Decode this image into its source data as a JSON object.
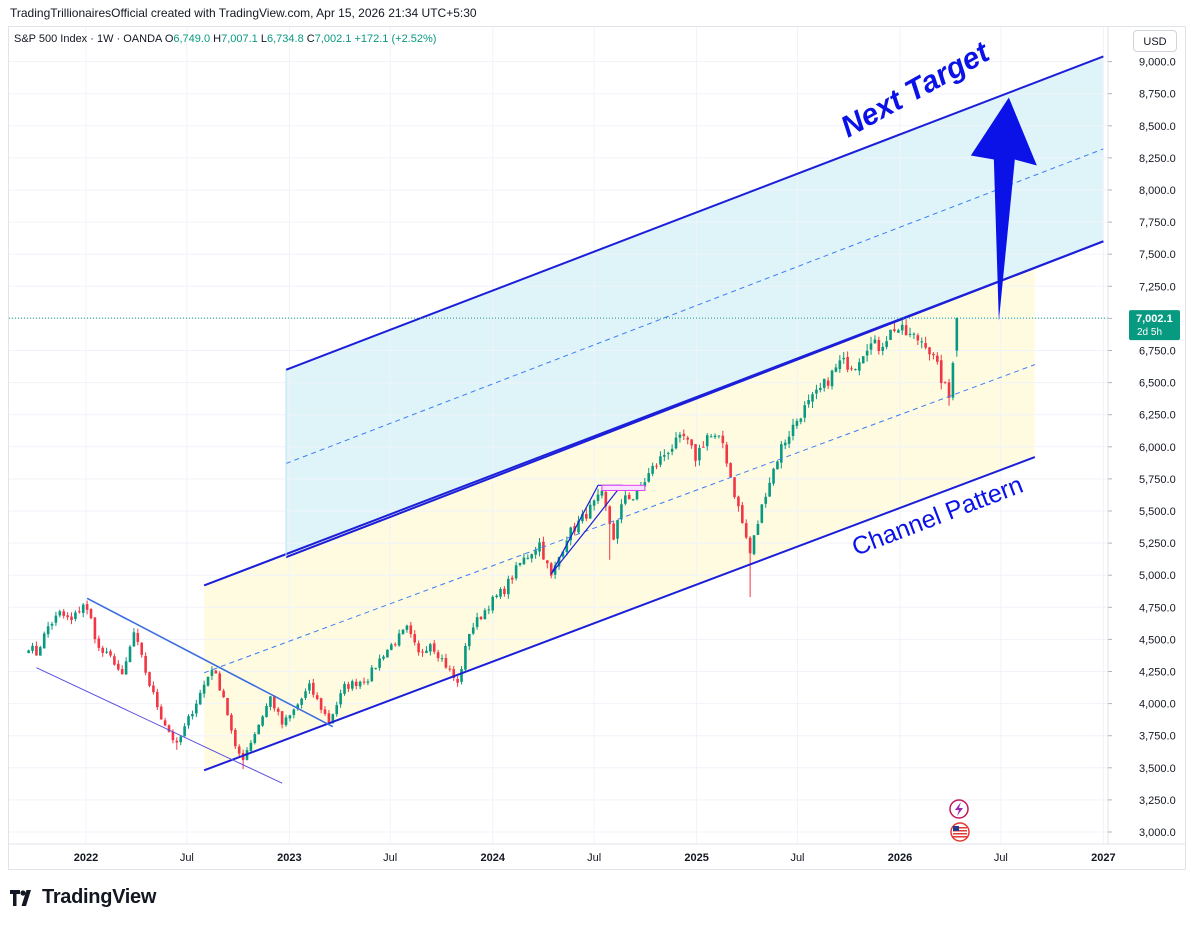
{
  "header": {
    "credit": "TradingTrillionairesOfficial created with TradingView.com, Apr 15, 2026 21:34 UTC+5:30",
    "symbol": "S&P 500 Index · 1W · OANDA",
    "o_label": "O",
    "o_value": "6,749.0",
    "h_label": "H",
    "h_value": "7,007.1",
    "l_label": "L",
    "l_value": "6,734.8",
    "c_label": "C",
    "c_value": "7,002.1",
    "change": "+172.1 (+2.52%)",
    "currency": "USD"
  },
  "footer": {
    "brand": "TradingView",
    "logo_icon": "tradingview-logo-icon"
  },
  "colors": {
    "up": "#089981",
    "down": "#f23645",
    "channel": "#1b1fd9",
    "arrow": "#0a12e8",
    "upper_fill": "#dff4f9",
    "lower_fill": "#fffbe0",
    "price_badge": "#089981",
    "pattern_box": "#e040fb"
  },
  "chart_data": {
    "type": "candlestick",
    "interval": "1W",
    "ylim": [
      2900,
      9150
    ],
    "y_ticks": [
      "3,000.0",
      "3,250.0",
      "3,500.0",
      "3,750.0",
      "4,000.0",
      "4,250.0",
      "4,500.0",
      "4,750.0",
      "5,000.0",
      "5,250.0",
      "5,500.0",
      "5,750.0",
      "6,000.0",
      "6,250.0",
      "6,500.0",
      "6,750.0",
      "7,000.0",
      "7,250.0",
      "7,500.0",
      "7,750.0",
      "8,000.0",
      "8,250.0",
      "8,500.0",
      "8,750.0",
      "9,000.0"
    ],
    "x_ticks": [
      {
        "label": "2022",
        "date": "2022-01-01",
        "bold": true
      },
      {
        "label": "Jul",
        "date": "2022-07-01",
        "bold": false
      },
      {
        "label": "2023",
        "date": "2023-01-01",
        "bold": true
      },
      {
        "label": "Jul",
        "date": "2023-07-01",
        "bold": false
      },
      {
        "label": "2024",
        "date": "2024-01-01",
        "bold": true
      },
      {
        "label": "Jul",
        "date": "2024-07-01",
        "bold": false
      },
      {
        "label": "2025",
        "date": "2025-01-01",
        "bold": true
      },
      {
        "label": "Jul",
        "date": "2025-07-01",
        "bold": false
      },
      {
        "label": "2026",
        "date": "2026-01-01",
        "bold": true
      },
      {
        "label": "Jul",
        "date": "2026-07-01",
        "bold": false
      },
      {
        "label": "2027",
        "date": "2027-01-01",
        "bold": true
      }
    ],
    "last_price": {
      "value": 7002.1,
      "label": "7,002.1",
      "countdown": "2d 5h"
    },
    "close_path": [
      {
        "date": "2021-09-20",
        "value": 4450
      },
      {
        "date": "2021-10-04",
        "value": 4390
      },
      {
        "date": "2021-10-25",
        "value": 4600
      },
      {
        "date": "2021-11-15",
        "value": 4700
      },
      {
        "date": "2021-12-06",
        "value": 4640
      },
      {
        "date": "2021-12-27",
        "value": 4780
      },
      {
        "date": "2022-01-10",
        "value": 4650
      },
      {
        "date": "2022-01-24",
        "value": 4420
      },
      {
        "date": "2022-02-21",
        "value": 4330
      },
      {
        "date": "2022-03-07",
        "value": 4200
      },
      {
        "date": "2022-03-28",
        "value": 4550
      },
      {
        "date": "2022-04-25",
        "value": 4150
      },
      {
        "date": "2022-05-16",
        "value": 3900
      },
      {
        "date": "2022-06-13",
        "value": 3670
      },
      {
        "date": "2022-07-04",
        "value": 3880
      },
      {
        "date": "2022-08-15",
        "value": 4280
      },
      {
        "date": "2022-09-05",
        "value": 4060
      },
      {
        "date": "2022-09-26",
        "value": 3640
      },
      {
        "date": "2022-10-10",
        "value": 3580
      },
      {
        "date": "2022-10-31",
        "value": 3770
      },
      {
        "date": "2022-11-28",
        "value": 4050
      },
      {
        "date": "2022-12-19",
        "value": 3840
      },
      {
        "date": "2023-01-02",
        "value": 3900
      },
      {
        "date": "2023-02-06",
        "value": 4130
      },
      {
        "date": "2023-03-13",
        "value": 3860
      },
      {
        "date": "2023-04-10",
        "value": 4130
      },
      {
        "date": "2023-05-22",
        "value": 4200
      },
      {
        "date": "2023-06-19",
        "value": 4390
      },
      {
        "date": "2023-07-31",
        "value": 4580
      },
      {
        "date": "2023-08-21",
        "value": 4380
      },
      {
        "date": "2023-09-11",
        "value": 4480
      },
      {
        "date": "2023-10-09",
        "value": 4300
      },
      {
        "date": "2023-10-30",
        "value": 4150
      },
      {
        "date": "2023-11-20",
        "value": 4560
      },
      {
        "date": "2023-12-25",
        "value": 4770
      },
      {
        "date": "2024-01-22",
        "value": 4890
      },
      {
        "date": "2024-02-19",
        "value": 5090
      },
      {
        "date": "2024-03-25",
        "value": 5250
      },
      {
        "date": "2024-04-15",
        "value": 4980
      },
      {
        "date": "2024-05-13",
        "value": 5300
      },
      {
        "date": "2024-06-17",
        "value": 5480
      },
      {
        "date": "2024-07-15",
        "value": 5620
      },
      {
        "date": "2024-08-05",
        "value": 5300
      },
      {
        "date": "2024-08-26",
        "value": 5630
      },
      {
        "date": "2024-09-09",
        "value": 5600
      },
      {
        "date": "2024-10-14",
        "value": 5830
      },
      {
        "date": "2024-11-11",
        "value": 5980
      },
      {
        "date": "2024-12-09",
        "value": 6070
      },
      {
        "date": "2024-12-30",
        "value": 5920
      },
      {
        "date": "2025-01-20",
        "value": 6090
      },
      {
        "date": "2025-02-17",
        "value": 6030
      },
      {
        "date": "2025-03-10",
        "value": 5640
      },
      {
        "date": "2025-04-07",
        "value": 5170
      },
      {
        "date": "2025-05-05",
        "value": 5650
      },
      {
        "date": "2025-06-02",
        "value": 6000
      },
      {
        "date": "2025-07-07",
        "value": 6260
      },
      {
        "date": "2025-08-11",
        "value": 6440
      },
      {
        "date": "2025-09-15",
        "value": 6650
      },
      {
        "date": "2025-10-13",
        "value": 6650
      },
      {
        "date": "2025-11-03",
        "value": 6800
      },
      {
        "date": "2025-11-24",
        "value": 6780
      },
      {
        "date": "2025-12-22",
        "value": 6930
      },
      {
        "date": "2026-01-19",
        "value": 6860
      },
      {
        "date": "2026-02-16",
        "value": 6820
      },
      {
        "date": "2026-03-09",
        "value": 6610
      },
      {
        "date": "2026-03-30",
        "value": 6380
      },
      {
        "date": "2026-04-13",
        "value": 7002
      }
    ],
    "candle_extremes": [
      {
        "date": "2022-06-13",
        "low": 3640
      },
      {
        "date": "2022-10-10",
        "low": 3490
      },
      {
        "date": "2024-07-29",
        "low": 5120
      },
      {
        "date": "2025-04-07",
        "low": 4830
      },
      {
        "date": "2026-03-30",
        "low": 6320
      },
      {
        "date": "2026-04-13",
        "high": 7007
      }
    ],
    "annotations": [
      {
        "type": "text",
        "text": "Next Target"
      },
      {
        "type": "text",
        "text": "Channel Pattern"
      },
      {
        "type": "arrow",
        "name": "target-arrow",
        "from": {
          "date": "2026-07-01",
          "value": 6980
        },
        "to": {
          "date": "2026-07-01",
          "value": 8720
        }
      },
      {
        "type": "channel",
        "name": "main-channel",
        "lower": [
          {
            "date": "2022-08-01",
            "value": 3480
          },
          {
            "date": "2026-08-31",
            "value": 5920
          }
        ],
        "upper": [
          {
            "date": "2022-08-01",
            "value": 4920
          },
          {
            "date": "2027-01-01",
            "value": 7600
          }
        ],
        "mid": [
          {
            "date": "2022-08-01",
            "value": 4240
          },
          {
            "date": "2026-08-31",
            "value": 6640
          }
        ]
      },
      {
        "type": "channel",
        "name": "projected-channel",
        "lower": [
          {
            "date": "2022-12-26",
            "value": 5140
          },
          {
            "date": "2027-01-01",
            "value": 7600
          }
        ],
        "upper": [
          {
            "date": "2022-12-26",
            "value": 6600
          },
          {
            "date": "2027-01-01",
            "value": 9040
          }
        ],
        "mid": [
          {
            "date": "2022-12-26",
            "value": 5870
          },
          {
            "date": "2027-01-01",
            "value": 8320
          }
        ]
      },
      {
        "type": "falling-wedge",
        "upper": [
          {
            "date": "2022-01-03",
            "value": 4820
          },
          {
            "date": "2023-03-20",
            "value": 3820
          }
        ],
        "lower": [
          {
            "date": "2021-10-04",
            "value": 4280
          },
          {
            "date": "2022-12-19",
            "value": 3380
          }
        ]
      },
      {
        "type": "rising-wedge",
        "points": [
          {
            "date": "2024-04-15",
            "value": 5010
          },
          {
            "date": "2024-07-08",
            "value": 5700
          },
          {
            "date": "2024-08-19",
            "value": 5700
          },
          {
            "date": "2024-06-24",
            "value": 5390
          }
        ]
      },
      {
        "type": "box",
        "name": "pattern-box",
        "from": {
          "date": "2024-07-15",
          "value": 5700
        },
        "to": {
          "date": "2024-09-30",
          "value": 5660
        }
      }
    ],
    "icons": [
      "lightning-icon",
      "us-flag-icon"
    ]
  }
}
